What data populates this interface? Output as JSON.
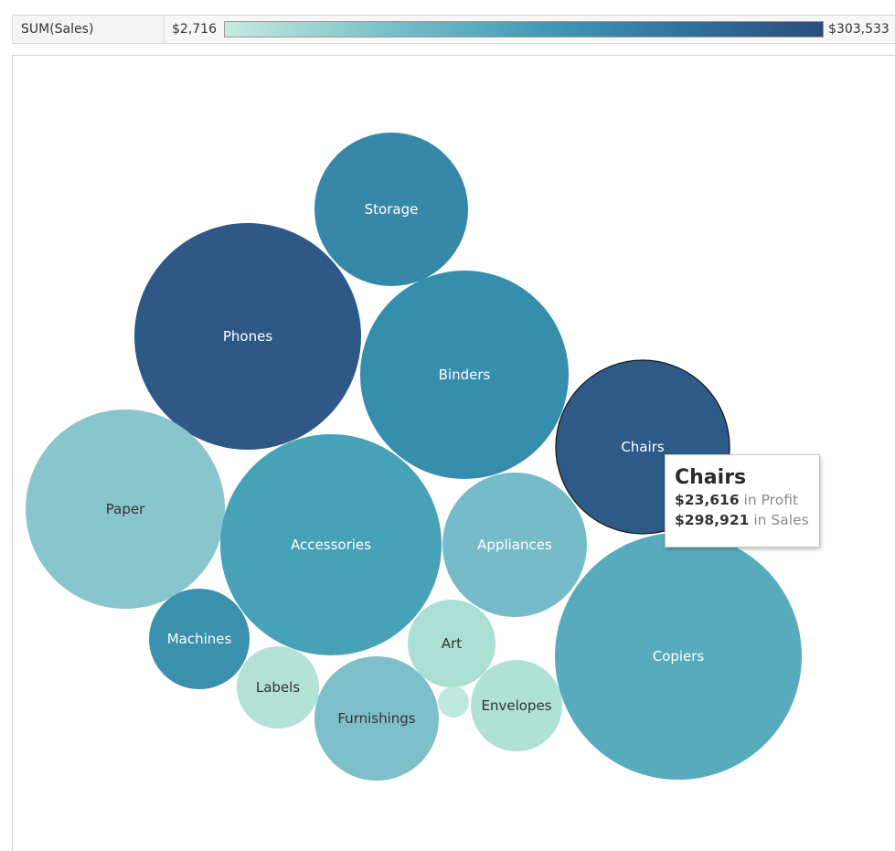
{
  "legend": {
    "field": "SUM(Sales)",
    "min_label": "$2,716",
    "max_label": "$303,533",
    "colors": [
      "#c7eadd",
      "#7ec3cb",
      "#3d98b6",
      "#2f6c9a",
      "#2a4e7b"
    ]
  },
  "chart_data": {
    "type": "bubble",
    "size_measure": "SUM(Sales)",
    "color_measure": "SUM(Sales)",
    "bubbles": [
      {
        "label": "Storage",
        "color": "#3687a8"
      },
      {
        "label": "Phones",
        "color": "#2e5986"
      },
      {
        "label": "Binders",
        "color": "#368ead"
      },
      {
        "label": "Chairs",
        "color": "#2d5a86",
        "sales": 298921,
        "profit": 23616,
        "highlighted": true
      },
      {
        "label": "Paper",
        "color": "#88c5cc"
      },
      {
        "label": "Accessories",
        "color": "#47a2b8"
      },
      {
        "label": "Appliances",
        "color": "#76bbc8"
      },
      {
        "label": "Machines",
        "color": "#3a90ad"
      },
      {
        "label": "Copiers",
        "color": "#58abbd"
      },
      {
        "label": "Art",
        "color": "#acdfd3"
      },
      {
        "label": "Labels",
        "color": "#b2e2d6"
      },
      {
        "label": "Furnishings",
        "color": "#7fbfc9"
      },
      {
        "label": "",
        "color": "#c0e8dc"
      },
      {
        "label": "Envelopes",
        "color": "#b0e1d5"
      }
    ]
  },
  "tooltip": {
    "title": "Chairs",
    "profit_value": "$23,616",
    "profit_suffix": "in Profit",
    "sales_value": "$298,921",
    "sales_suffix": "in Sales"
  }
}
